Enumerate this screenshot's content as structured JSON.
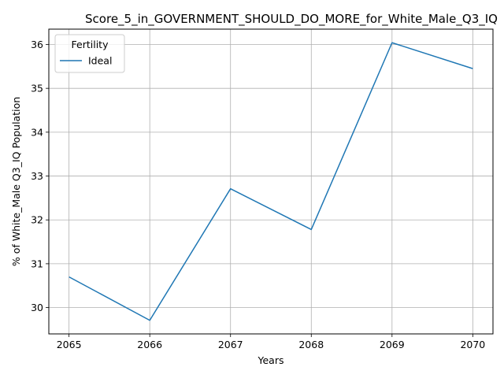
{
  "chart_data": {
    "type": "line",
    "title": "Score_5_in_GOVERNMENT_SHOULD_DO_MORE_for_White_Male_Q3_IQ",
    "xlabel": "Years",
    "ylabel": "% of White_Male Q3_IQ Population",
    "x": [
      2065,
      2066,
      2067,
      2068,
      2069,
      2070
    ],
    "series": [
      {
        "name": "Ideal",
        "values": [
          30.7,
          29.71,
          32.71,
          31.78,
          36.04,
          35.45
        ]
      }
    ],
    "xticks": [
      2065,
      2066,
      2067,
      2068,
      2069,
      2070
    ],
    "yticks": [
      30,
      31,
      32,
      33,
      34,
      35,
      36
    ],
    "xlim": [
      2064.75,
      2070.25
    ],
    "ylim": [
      29.4,
      36.35
    ],
    "grid": true,
    "legend": {
      "title": "Fertility",
      "placement": "top-left"
    },
    "colors": {
      "series": "#1f77b4",
      "grid": "#b0b0b0",
      "axes": "#000000"
    }
  }
}
